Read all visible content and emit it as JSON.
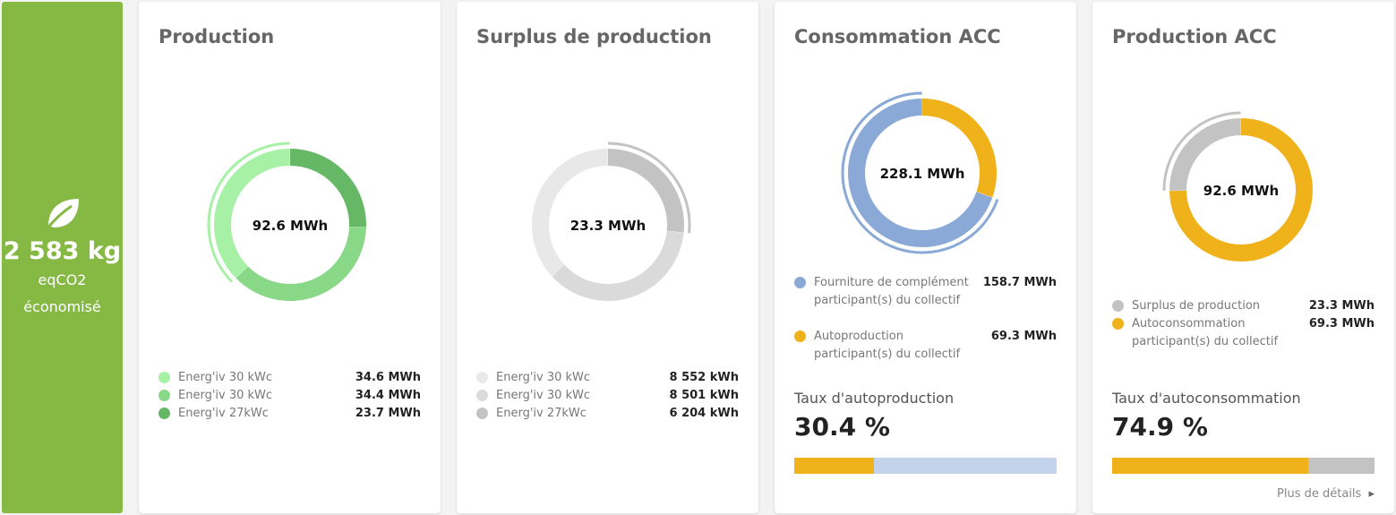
{
  "eco": {
    "value": "2 583 kg",
    "unit": "eqCO2",
    "desc": "économisé",
    "icon": "leaf-icon"
  },
  "production": {
    "title": "Production",
    "center": "92.6 MWh",
    "items": [
      {
        "label": "Energ'iv 30 kWc",
        "value": "34.6 MWh",
        "color": "#a6f1a6"
      },
      {
        "label": "Energ'iv 30 kWc",
        "value": "34.4 MWh",
        "color": "#88d888"
      },
      {
        "label": "Energ'iv 27kWc",
        "value": "23.7 MWh",
        "color": "#66b866"
      }
    ]
  },
  "surplus": {
    "title": "Surplus de production",
    "center": "23.3 MWh",
    "items": [
      {
        "label": "Energ'iv 30 kWc",
        "value": "8 552 kWh",
        "color": "#e8e8e8"
      },
      {
        "label": "Energ'iv 30 kWc",
        "value": "8 501 kWh",
        "color": "#dadada"
      },
      {
        "label": "Energ'iv 27kWc",
        "value": "6 204 kWh",
        "color": "#c4c3c4"
      }
    ]
  },
  "consommation": {
    "title": "Consommation ACC",
    "center": "228.1 MWh",
    "items": [
      {
        "label": "Fourniture de complément participant(s) du collectif",
        "value": "158.7 MWh",
        "color": "#8aa9d6"
      },
      {
        "label": "Autoproduction participant(s) du collectif",
        "value": "69.3 MWh",
        "color": "#f0b21a"
      }
    ],
    "rate_label": "Taux d'autoproduction",
    "rate_value": "30.4 %",
    "rate_fraction": 0.304
  },
  "production_acc": {
    "title": "Production ACC",
    "center": "92.6 MWh",
    "items": [
      {
        "label": "Surplus de production",
        "value": "23.3 MWh",
        "color": "#c4c3c4"
      },
      {
        "label": "Autoconsommation participant(s) du collectif",
        "value": "69.3 MWh",
        "color": "#f0b21a"
      }
    ],
    "rate_label": "Taux d'autoconsommation",
    "rate_value": "74.9 %",
    "rate_fraction": 0.749,
    "details_link": "Plus de détails"
  }
}
